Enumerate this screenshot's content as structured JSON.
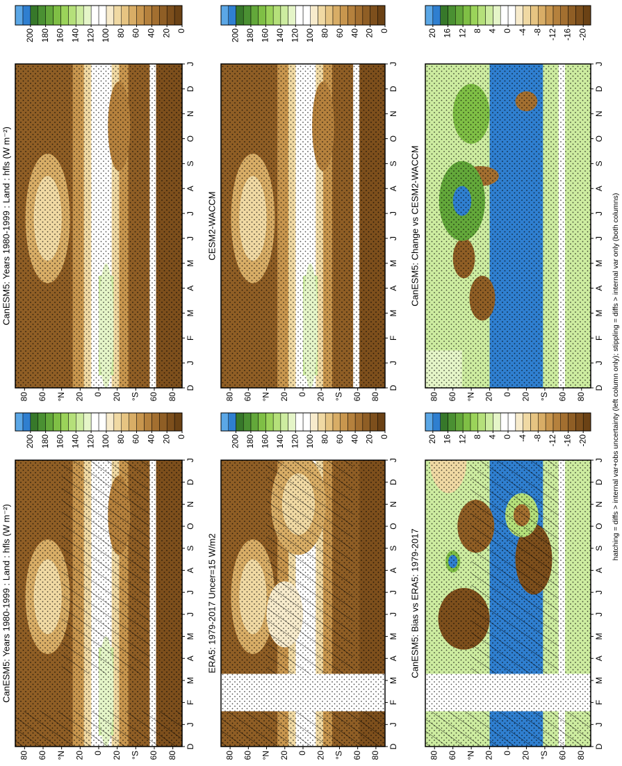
{
  "chart_data": [
    {
      "type": "contour",
      "title": "CanESM5: Years 1980-1999 : Land : hfls (W m⁻²)",
      "categories": [
        "D",
        "J",
        "F",
        "M",
        "A",
        "M",
        "J",
        "J",
        "A",
        "S",
        "O",
        "N",
        "D",
        "J"
      ],
      "ylim": [
        -90,
        90
      ],
      "yticks": [
        80,
        60,
        {
          "value": 40,
          "label": "°N"
        },
        20,
        0,
        {
          "value": -20,
          "label": "20"
        },
        {
          "value": -40,
          "label": "°S"
        },
        {
          "value": -60,
          "label": "60"
        },
        {
          "value": -80,
          "label": "80"
        }
      ],
      "zlim": [
        0,
        220
      ],
      "zticks": [
        200,
        180,
        160,
        140,
        120,
        100,
        80,
        60,
        40,
        20,
        0
      ],
      "colors": [
        "#6b4215",
        "#7d4f1c",
        "#8f5e25",
        "#a36f30",
        "#b5813d",
        "#c8964e",
        "#d8ad66",
        "#e6c482",
        "#f0d9a3",
        "#f7ebcc",
        "#ffffff",
        "#ffffff",
        "#e5f5c8",
        "#cdeca0",
        "#b5e07a",
        "#9bd35a",
        "#7fbf45",
        "#63a83a",
        "#4a9032",
        "#37782a",
        "#2f7fd0",
        "#5ba7e6"
      ],
      "hatching": true,
      "stippling": true
    },
    {
      "type": "contour",
      "title": "ERA5: 1979-2017 Uncer=15 W/m2",
      "categories": [
        "D",
        "J",
        "F",
        "M",
        "A",
        "M",
        "J",
        "J",
        "A",
        "S",
        "O",
        "N",
        "D",
        "J"
      ],
      "ylim": [
        -90,
        90
      ],
      "yticks": [
        80,
        60,
        {
          "value": 40,
          "label": "°N"
        },
        20,
        0,
        {
          "value": -20,
          "label": "20"
        },
        {
          "value": -40,
          "label": "°S"
        },
        {
          "value": -60,
          "label": "60"
        },
        {
          "value": -80,
          "label": "80"
        }
      ],
      "zlim": [
        0,
        220
      ],
      "zticks": [
        200,
        180,
        160,
        140,
        120,
        100,
        80,
        60,
        40,
        20,
        0
      ],
      "colors": [
        "#6b4215",
        "#7d4f1c",
        "#8f5e25",
        "#a36f30",
        "#b5813d",
        "#c8964e",
        "#d8ad66",
        "#e6c482",
        "#f0d9a3",
        "#f7ebcc",
        "#ffffff",
        "#ffffff",
        "#e5f5c8",
        "#cdeca0",
        "#b5e07a",
        "#9bd35a",
        "#7fbf45",
        "#63a83a",
        "#4a9032",
        "#37782a",
        "#2f7fd0",
        "#5ba7e6"
      ],
      "hatching": true,
      "stippling": true
    },
    {
      "type": "contour",
      "title": "CanESM5: Bias vs ERA5: 1979-2017",
      "categories": [
        "D",
        "J",
        "F",
        "M",
        "A",
        "M",
        "J",
        "J",
        "A",
        "S",
        "O",
        "N",
        "D",
        "J"
      ],
      "ylim": [
        -90,
        90
      ],
      "yticks": [
        80,
        60,
        {
          "value": 40,
          "label": "°N"
        },
        20,
        0,
        {
          "value": -20,
          "label": "20"
        },
        {
          "value": -40,
          "label": "°S"
        },
        {
          "value": -60,
          "label": "60"
        },
        {
          "value": -80,
          "label": "80"
        }
      ],
      "zlim": [
        -22,
        22
      ],
      "zticks": [
        20,
        16,
        12,
        8,
        4,
        0,
        -4,
        -8,
        -12,
        -16,
        -20
      ],
      "colors": [
        "#6b4215",
        "#7d4f1c",
        "#8f5e25",
        "#a36f30",
        "#b5813d",
        "#c8964e",
        "#d8ad66",
        "#e6c482",
        "#f0d9a3",
        "#f7ebcc",
        "#ffffff",
        "#ffffff",
        "#e5f5c8",
        "#cdeca0",
        "#b5e07a",
        "#9bd35a",
        "#7fbf45",
        "#63a83a",
        "#4a9032",
        "#37782a",
        "#2f7fd0",
        "#5ba7e6"
      ],
      "hatching": true,
      "stippling": true
    },
    {
      "type": "contour",
      "title": "CanESM5: Years 1980-1999 : Land : hfls (W m⁻²)",
      "categories": [
        "D",
        "J",
        "F",
        "M",
        "A",
        "M",
        "J",
        "J",
        "A",
        "S",
        "O",
        "N",
        "D",
        "J"
      ],
      "ylim": [
        -90,
        90
      ],
      "yticks": [
        80,
        60,
        {
          "value": 40,
          "label": "°N"
        },
        20,
        0,
        {
          "value": -20,
          "label": "20"
        },
        {
          "value": -40,
          "label": "°S"
        },
        {
          "value": -60,
          "label": "60"
        },
        {
          "value": -80,
          "label": "80"
        }
      ],
      "zlim": [
        0,
        220
      ],
      "zticks": [
        200,
        180,
        160,
        140,
        120,
        100,
        80,
        60,
        40,
        20,
        0
      ],
      "colors": [
        "#6b4215",
        "#7d4f1c",
        "#8f5e25",
        "#a36f30",
        "#b5813d",
        "#c8964e",
        "#d8ad66",
        "#e6c482",
        "#f0d9a3",
        "#f7ebcc",
        "#ffffff",
        "#ffffff",
        "#e5f5c8",
        "#cdeca0",
        "#b5e07a",
        "#9bd35a",
        "#7fbf45",
        "#63a83a",
        "#4a9032",
        "#37782a",
        "#2f7fd0",
        "#5ba7e6"
      ],
      "hatching": false,
      "stippling": true
    },
    {
      "type": "contour",
      "title": "CESM2-WACCM",
      "categories": [
        "D",
        "J",
        "F",
        "M",
        "A",
        "M",
        "J",
        "J",
        "A",
        "S",
        "O",
        "N",
        "D",
        "J"
      ],
      "ylim": [
        -90,
        90
      ],
      "yticks": [
        80,
        60,
        {
          "value": 40,
          "label": "°N"
        },
        20,
        0,
        {
          "value": -20,
          "label": "20"
        },
        {
          "value": -40,
          "label": "°S"
        },
        {
          "value": -60,
          "label": "60"
        },
        {
          "value": -80,
          "label": "80"
        }
      ],
      "zlim": [
        0,
        220
      ],
      "zticks": [
        200,
        180,
        160,
        140,
        120,
        100,
        80,
        60,
        40,
        20,
        0
      ],
      "colors": [
        "#6b4215",
        "#7d4f1c",
        "#8f5e25",
        "#a36f30",
        "#b5813d",
        "#c8964e",
        "#d8ad66",
        "#e6c482",
        "#f0d9a3",
        "#f7ebcc",
        "#ffffff",
        "#ffffff",
        "#e5f5c8",
        "#cdeca0",
        "#b5e07a",
        "#9bd35a",
        "#7fbf45",
        "#63a83a",
        "#4a9032",
        "#37782a",
        "#2f7fd0",
        "#5ba7e6"
      ],
      "hatching": false,
      "stippling": true
    },
    {
      "type": "contour",
      "title": "CanESM5: Change vs CESM2-WACCM",
      "categories": [
        "D",
        "J",
        "F",
        "M",
        "A",
        "M",
        "J",
        "J",
        "A",
        "S",
        "O",
        "N",
        "D",
        "J"
      ],
      "ylim": [
        -90,
        90
      ],
      "yticks": [
        80,
        60,
        {
          "value": 40,
          "label": "°N"
        },
        20,
        0,
        {
          "value": -20,
          "label": "20"
        },
        {
          "value": -40,
          "label": "°S"
        },
        {
          "value": -60,
          "label": "60"
        },
        {
          "value": -80,
          "label": "80"
        }
      ],
      "zlim": [
        -22,
        22
      ],
      "zticks": [
        20,
        16,
        12,
        8,
        4,
        0,
        -4,
        -8,
        -12,
        -16,
        -20
      ],
      "colors": [
        "#6b4215",
        "#7d4f1c",
        "#8f5e25",
        "#a36f30",
        "#b5813d",
        "#c8964e",
        "#d8ad66",
        "#e6c482",
        "#f0d9a3",
        "#f7ebcc",
        "#ffffff",
        "#ffffff",
        "#e5f5c8",
        "#cdeca0",
        "#b5e07a",
        "#9bd35a",
        "#7fbf45",
        "#63a83a",
        "#4a9032",
        "#37782a",
        "#2f7fd0",
        "#5ba7e6"
      ],
      "hatching": false,
      "stippling": true
    }
  ],
  "caption": "hatching = diffs > internal var+obs uncertainty (left column only); stippling = diffs > internal var only (both columns)"
}
